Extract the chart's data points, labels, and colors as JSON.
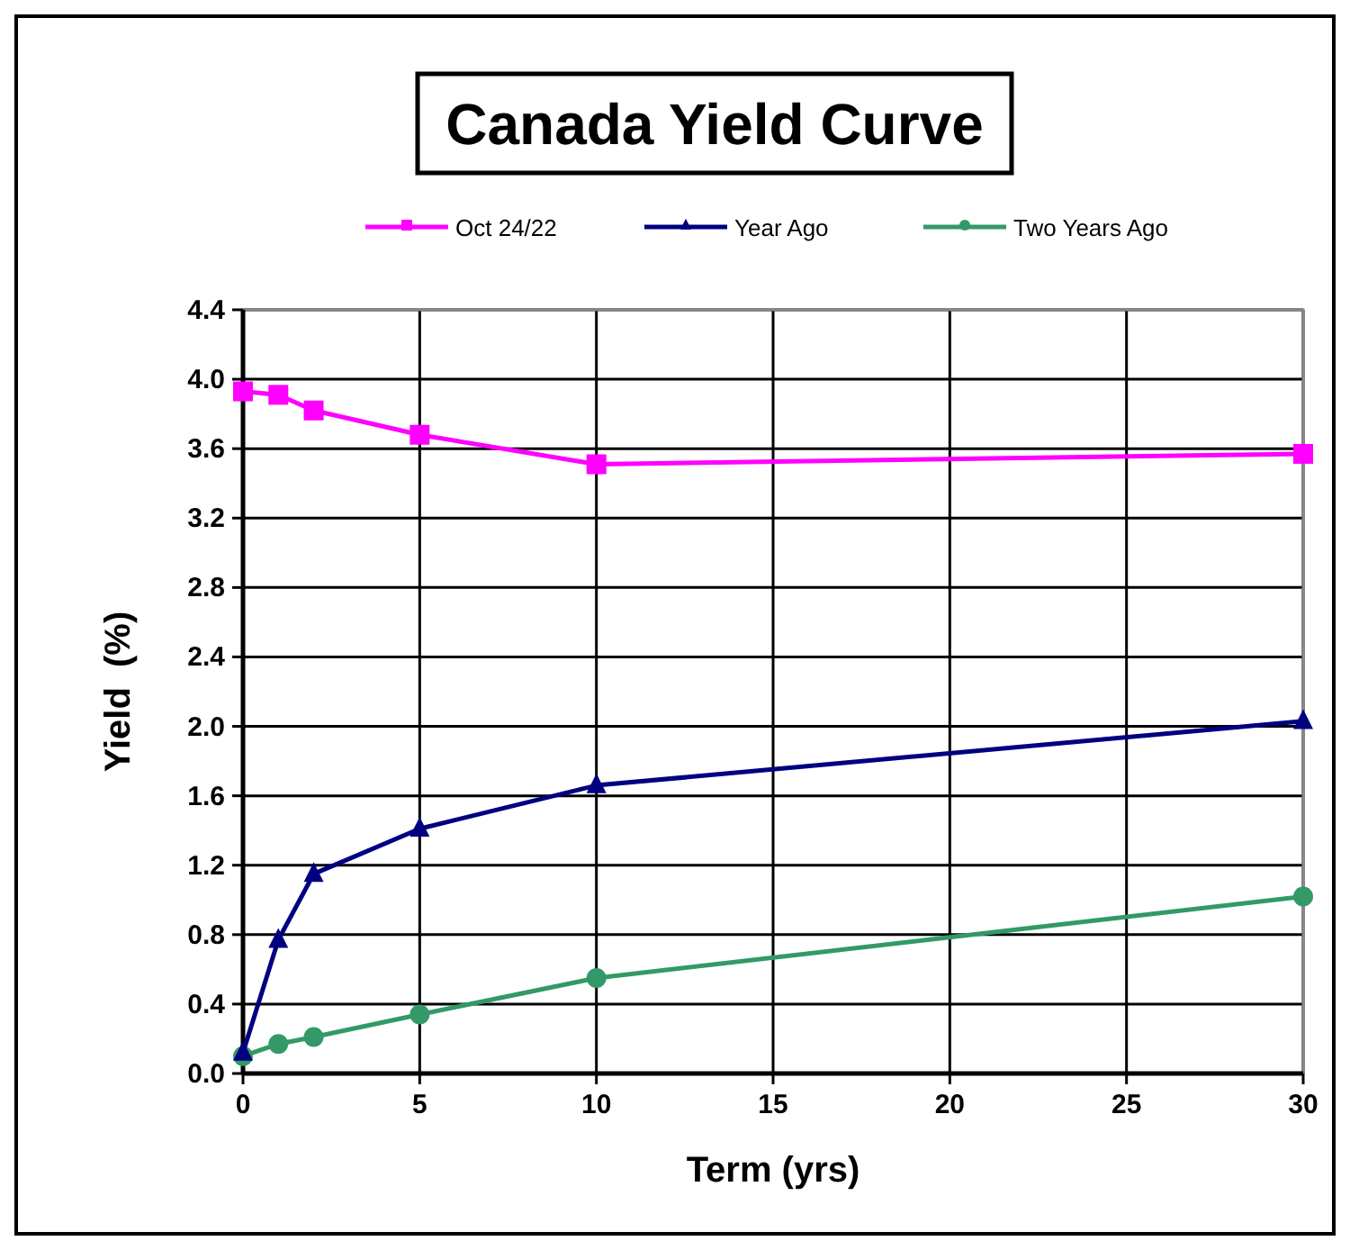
{
  "chart_data": {
    "type": "line",
    "title": "Canada Yield Curve",
    "xlabel": "Term (yrs)",
    "ylabel": "Yield  (%)",
    "x": [
      0,
      1,
      2,
      5,
      10,
      30
    ],
    "series": [
      {
        "name": "Oct 24/22",
        "color": "#ff00ff",
        "marker": "square",
        "values": [
          3.93,
          3.91,
          3.82,
          3.68,
          3.51,
          3.57
        ]
      },
      {
        "name": "Year Ago",
        "color": "#000080",
        "marker": "triangle",
        "values": [
          0.12,
          0.77,
          1.15,
          1.41,
          1.66,
          2.03
        ]
      },
      {
        "name": "Two Years Ago",
        "color": "#339966",
        "marker": "circle",
        "values": [
          0.1,
          0.17,
          0.21,
          0.34,
          0.55,
          1.02
        ]
      }
    ],
    "xlim": [
      0,
      30
    ],
    "xticks": [
      0,
      5,
      10,
      15,
      20,
      25,
      30
    ],
    "ylim": [
      0,
      4.4
    ],
    "yticks": [
      {
        "value": 0,
        "label": "0.0"
      },
      0.4,
      0.8,
      1.2,
      1.6,
      {
        "value": 2,
        "label": "2.0"
      },
      2.4,
      2.8,
      3.2,
      3.6,
      {
        "value": 4,
        "label": "4.0"
      },
      4.4
    ],
    "grid": true,
    "legend": "top"
  }
}
